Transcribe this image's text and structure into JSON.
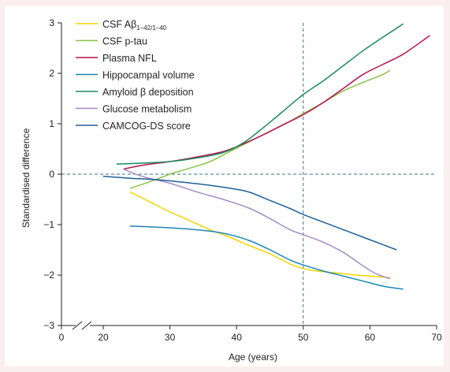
{
  "chart_data": {
    "type": "line",
    "xlabel": "Age (years)",
    "ylabel": "Standardised difference",
    "xlim": [
      0,
      70
    ],
    "ylim": [
      -3,
      3
    ],
    "x_break": "0-20",
    "x_ticks": [
      "0",
      "20",
      "30",
      "40",
      "50",
      "60",
      "70"
    ],
    "y_ticks": [
      "3",
      "2",
      "1",
      "0",
      "-1",
      "-2",
      "-3"
    ],
    "reference_lines": {
      "horizontal_y": 0,
      "vertical_x": 50,
      "style": "dashed"
    },
    "legend_position": "top-left",
    "series": [
      {
        "name": "CSF Aβ",
        "sub": "1–42/1–40",
        "color": "#f2d400",
        "x": [
          24,
          27,
          30,
          33,
          36,
          39,
          42,
          45,
          48,
          50,
          52,
          55,
          58,
          60,
          62,
          63
        ],
        "y": [
          -0.35,
          -0.55,
          -0.75,
          -0.92,
          -1.1,
          -1.25,
          -1.42,
          -1.58,
          -1.78,
          -1.87,
          -1.92,
          -1.96,
          -2.0,
          -2.02,
          -2.04,
          -2.05
        ]
      },
      {
        "name": "CSF p-tau",
        "color": "#8bc34a",
        "x": [
          24,
          27,
          30,
          33,
          36,
          39,
          42,
          45,
          48,
          50,
          53,
          56,
          59,
          62,
          63
        ],
        "y": [
          -0.28,
          -0.15,
          0.0,
          0.12,
          0.25,
          0.45,
          0.65,
          0.85,
          1.05,
          1.2,
          1.42,
          1.65,
          1.82,
          1.98,
          2.06
        ]
      },
      {
        "name": "Plasma NFL",
        "color": "#b8124d",
        "x": [
          23,
          26,
          30,
          34,
          38,
          41,
          44,
          47,
          50,
          53,
          56,
          59,
          62,
          65,
          69
        ],
        "y": [
          0.1,
          0.18,
          0.25,
          0.34,
          0.45,
          0.6,
          0.78,
          0.98,
          1.18,
          1.42,
          1.7,
          1.98,
          2.18,
          2.38,
          2.75
        ]
      },
      {
        "name": "Hippocampal volume",
        "color": "#1b86b7",
        "x": [
          24,
          28,
          32,
          36,
          39,
          42,
          45,
          48,
          50,
          53,
          56,
          59,
          62,
          65
        ],
        "y": [
          -1.03,
          -1.05,
          -1.08,
          -1.13,
          -1.2,
          -1.32,
          -1.5,
          -1.7,
          -1.8,
          -1.92,
          -2.02,
          -2.12,
          -2.22,
          -2.28
        ]
      },
      {
        "name": "Amyloid β deposition",
        "color": "#1a8a5e",
        "x": [
          22,
          26,
          30,
          34,
          38,
          41,
          44,
          47,
          50,
          53,
          56,
          59,
          62,
          65
        ],
        "y": [
          0.2,
          0.22,
          0.25,
          0.32,
          0.43,
          0.62,
          0.92,
          1.25,
          1.58,
          1.85,
          2.15,
          2.45,
          2.72,
          2.98
        ]
      },
      {
        "name": "Glucose metabolism",
        "color": "#a58cc7",
        "x": [
          23,
          26,
          30,
          34,
          38,
          42,
          45,
          48,
          50,
          53,
          56,
          59,
          61,
          63
        ],
        "y": [
          0.1,
          -0.05,
          -0.18,
          -0.35,
          -0.5,
          -0.68,
          -0.88,
          -1.1,
          -1.2,
          -1.35,
          -1.55,
          -1.82,
          -1.98,
          -2.07
        ]
      },
      {
        "name": "CAMCOG-DS score",
        "color": "#1f5f98",
        "x": [
          20,
          24,
          28,
          32,
          36,
          40,
          42,
          45,
          48,
          50,
          53,
          56,
          59,
          62,
          64
        ],
        "y": [
          -0.04,
          -0.08,
          -0.11,
          -0.16,
          -0.22,
          -0.3,
          -0.36,
          -0.52,
          -0.68,
          -0.8,
          -0.95,
          -1.1,
          -1.25,
          -1.4,
          -1.5
        ]
      }
    ]
  }
}
